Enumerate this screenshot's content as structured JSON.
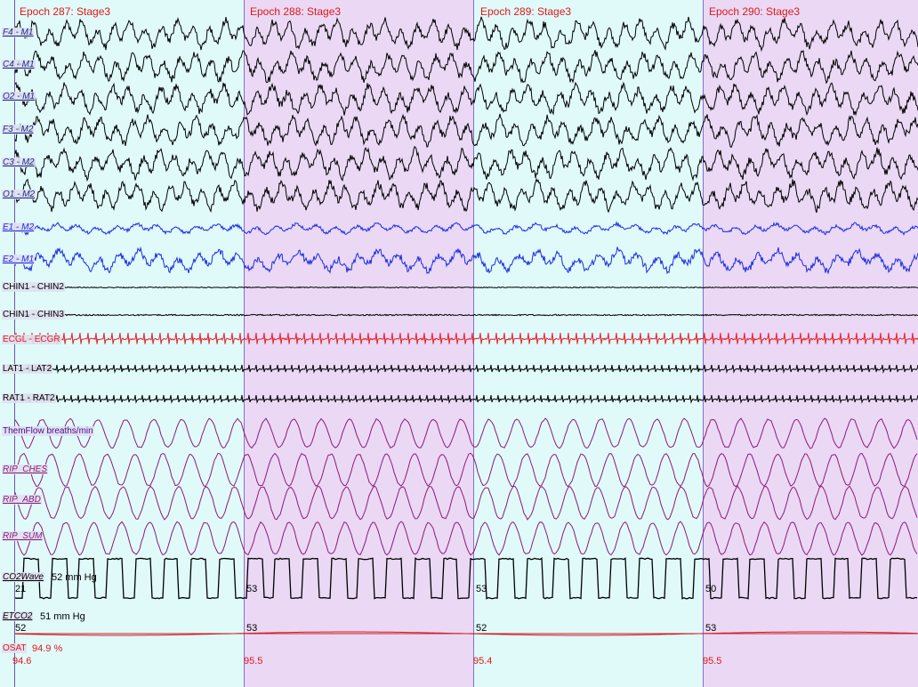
{
  "colors": {
    "epoch_odd_bg": "#e0fafa",
    "epoch_even_bg": "#ead8f5",
    "eeg": "#000000",
    "eog": "#1a2be0",
    "emg": "#000000",
    "ecg": "#e8202a",
    "resp": "#8c1a78",
    "co2": "#000000",
    "etco2": "#d02020",
    "spo2": "#d02020"
  },
  "epochs": [
    {
      "title": "Epoch 287: Stage3"
    },
    {
      "title": "Epoch 288: Stage3"
    },
    {
      "title": "Epoch 289: Stage3"
    },
    {
      "title": "Epoch 290: Stage3"
    }
  ],
  "channels": [
    {
      "label": "F4 - M1",
      "type": "eeg"
    },
    {
      "label": "C4 - M1",
      "type": "eeg"
    },
    {
      "label": "O2 - M1",
      "type": "eeg"
    },
    {
      "label": "F3 - M2",
      "type": "eeg"
    },
    {
      "label": "C3 - M2",
      "type": "eeg"
    },
    {
      "label": "O1 - M2",
      "type": "eeg"
    },
    {
      "label": "E1 - M2",
      "type": "eog"
    },
    {
      "label": "E2 - M1",
      "type": "eog"
    },
    {
      "label": "CHIN1 - CHIN2",
      "type": "emg"
    },
    {
      "label": "CHIN1 - CHIN3",
      "type": "emg"
    },
    {
      "label": "ECGL - ECGR",
      "type": "ecg"
    },
    {
      "label": "LAT1 - LAT2",
      "type": "emg"
    },
    {
      "label": "RAT1 - RAT2",
      "type": "emg"
    },
    {
      "label": "ThemFlow breaths/min",
      "type": "resp"
    },
    {
      "label": "RIP_CHES",
      "type": "resp"
    },
    {
      "label": "RIP_ABD",
      "type": "resp"
    },
    {
      "label": "RIP_SUM",
      "type": "resp"
    },
    {
      "label": "CO2Wave",
      "type": "co2"
    },
    {
      "label": "ETCO2",
      "type": "etco2"
    },
    {
      "label": "OSAT",
      "type": "spo2"
    }
  ],
  "co2wave": {
    "readout": "52 mm Hg",
    "epoch_values": [
      "21",
      "53",
      "53",
      "50"
    ]
  },
  "etco2": {
    "readout": "51 mm Hg",
    "epoch_values": [
      "52",
      "53",
      "52",
      "53"
    ]
  },
  "osat": {
    "readout": "94.9 %",
    "epoch_values": [
      "94.6",
      "95.5",
      "95.4",
      "95.5"
    ]
  }
}
